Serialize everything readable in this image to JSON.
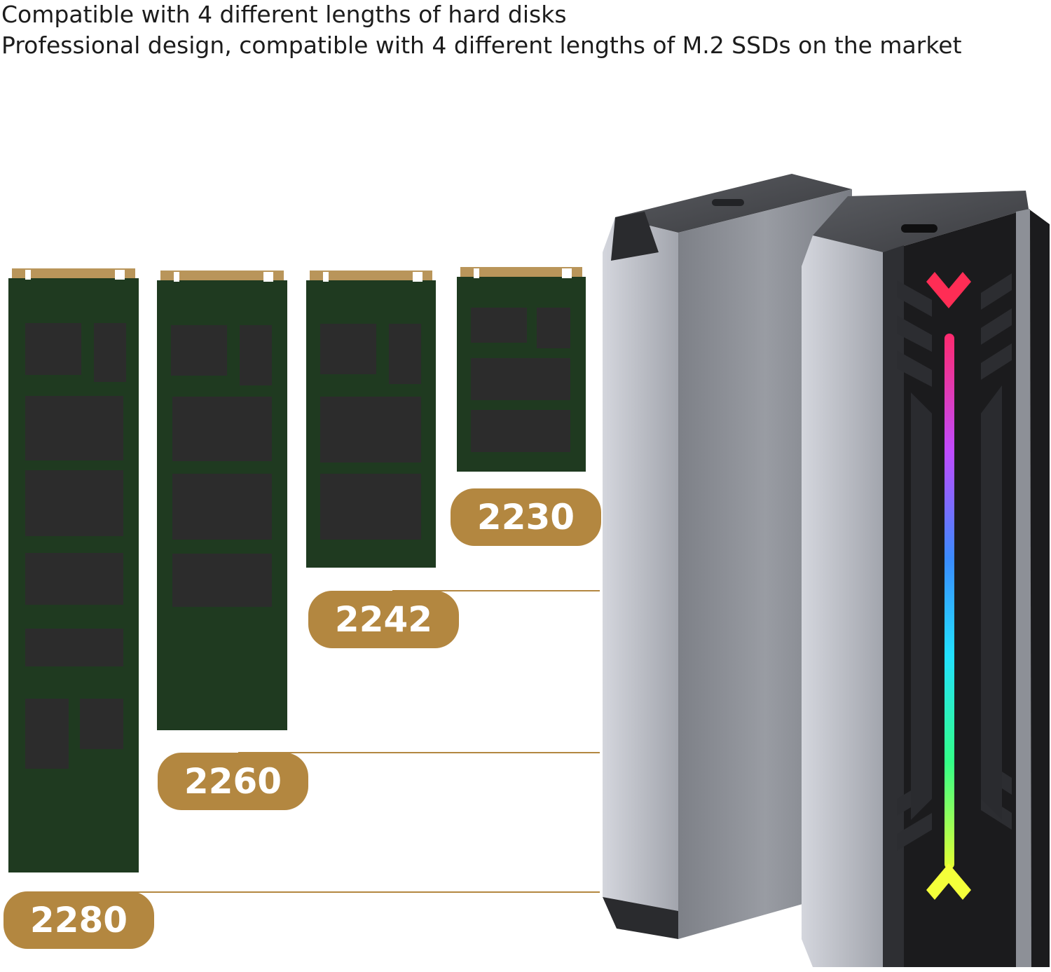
{
  "captions": {
    "line1": "Compatible with 4 different lengths of hard disks",
    "line2": "Professional design, compatible with 4 different lengths of M.2 SSDs on the market"
  },
  "ssd_lengths": [
    {
      "label": "2280"
    },
    {
      "label": "2260"
    },
    {
      "label": "2242"
    },
    {
      "label": "2230"
    }
  ],
  "colors": {
    "pcb": "#1f3a20",
    "chip": "#2c2c2c",
    "gold_label": "#b38740",
    "contacts": "#b9955a",
    "enclosure_silver": "#8d9097",
    "enclosure_dark": "#1b1b1d",
    "rgb_gradient": [
      "#ff2a6d",
      "#b54bff",
      "#3a8bff",
      "#22e0ff",
      "#33ff88",
      "#e6ff33"
    ]
  },
  "product": {
    "name": "m2-ssd-enclosure-pair",
    "icons": [
      "usb-c-port-icon",
      "usb-c-port-icon",
      "rgb-light-strip-icon",
      "red-chevron-icon",
      "yellow-chevron-icon"
    ]
  }
}
